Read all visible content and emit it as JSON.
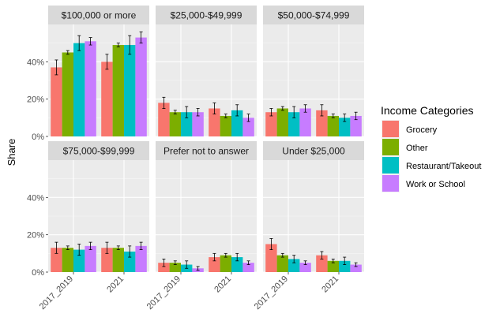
{
  "chart_data": {
    "type": "bar",
    "ylabel": "Share",
    "ylim": [
      0,
      0.6
    ],
    "y_ticks": [
      0,
      0.2,
      0.4
    ],
    "y_tick_labels": [
      "0%",
      "20%",
      "40%"
    ],
    "categories": [
      "2017_2019",
      "2021"
    ],
    "legend_title": "Income Categories",
    "legend_position": "right",
    "grid": true,
    "series": [
      {
        "name": "Grocery",
        "color": "#F8766D"
      },
      {
        "name": "Other",
        "color": "#7CAE00"
      },
      {
        "name": "Restaurant/Takeout",
        "color": "#00BFC4"
      },
      {
        "name": "Work or School",
        "color": "#C77CFF"
      }
    ],
    "panels": [
      {
        "title": "$100,000 or more",
        "values": [
          [
            0.37,
            0.45,
            0.5,
            0.51
          ],
          [
            0.4,
            0.49,
            0.49,
            0.53
          ]
        ],
        "errors": [
          [
            0.04,
            0.01,
            0.04,
            0.02
          ],
          [
            0.04,
            0.01,
            0.05,
            0.03
          ]
        ]
      },
      {
        "title": "$25,000-$49,999",
        "values": [
          [
            0.18,
            0.13,
            0.13,
            0.13
          ],
          [
            0.15,
            0.11,
            0.14,
            0.1
          ]
        ],
        "errors": [
          [
            0.03,
            0.01,
            0.03,
            0.02
          ],
          [
            0.03,
            0.01,
            0.03,
            0.02
          ]
        ]
      },
      {
        "title": "$50,000-$74,999",
        "values": [
          [
            0.13,
            0.15,
            0.13,
            0.15
          ],
          [
            0.14,
            0.11,
            0.1,
            0.11
          ]
        ],
        "errors": [
          [
            0.02,
            0.01,
            0.03,
            0.02
          ],
          [
            0.03,
            0.01,
            0.02,
            0.02
          ]
        ]
      },
      {
        "title": "$75,000-$99,999",
        "values": [
          [
            0.13,
            0.13,
            0.12,
            0.14
          ],
          [
            0.13,
            0.13,
            0.11,
            0.14
          ]
        ],
        "errors": [
          [
            0.03,
            0.01,
            0.03,
            0.02
          ],
          [
            0.03,
            0.01,
            0.03,
            0.02
          ]
        ]
      },
      {
        "title": "Prefer not to answer",
        "values": [
          [
            0.05,
            0.05,
            0.04,
            0.02
          ],
          [
            0.08,
            0.09,
            0.08,
            0.05
          ]
        ],
        "errors": [
          [
            0.02,
            0.01,
            0.02,
            0.01
          ],
          [
            0.02,
            0.01,
            0.02,
            0.01
          ]
        ]
      },
      {
        "title": "Under $25,000",
        "values": [
          [
            0.15,
            0.09,
            0.07,
            0.05
          ],
          [
            0.09,
            0.06,
            0.06,
            0.04
          ]
        ],
        "errors": [
          [
            0.03,
            0.01,
            0.02,
            0.01
          ],
          [
            0.02,
            0.01,
            0.02,
            0.01
          ]
        ]
      }
    ]
  }
}
